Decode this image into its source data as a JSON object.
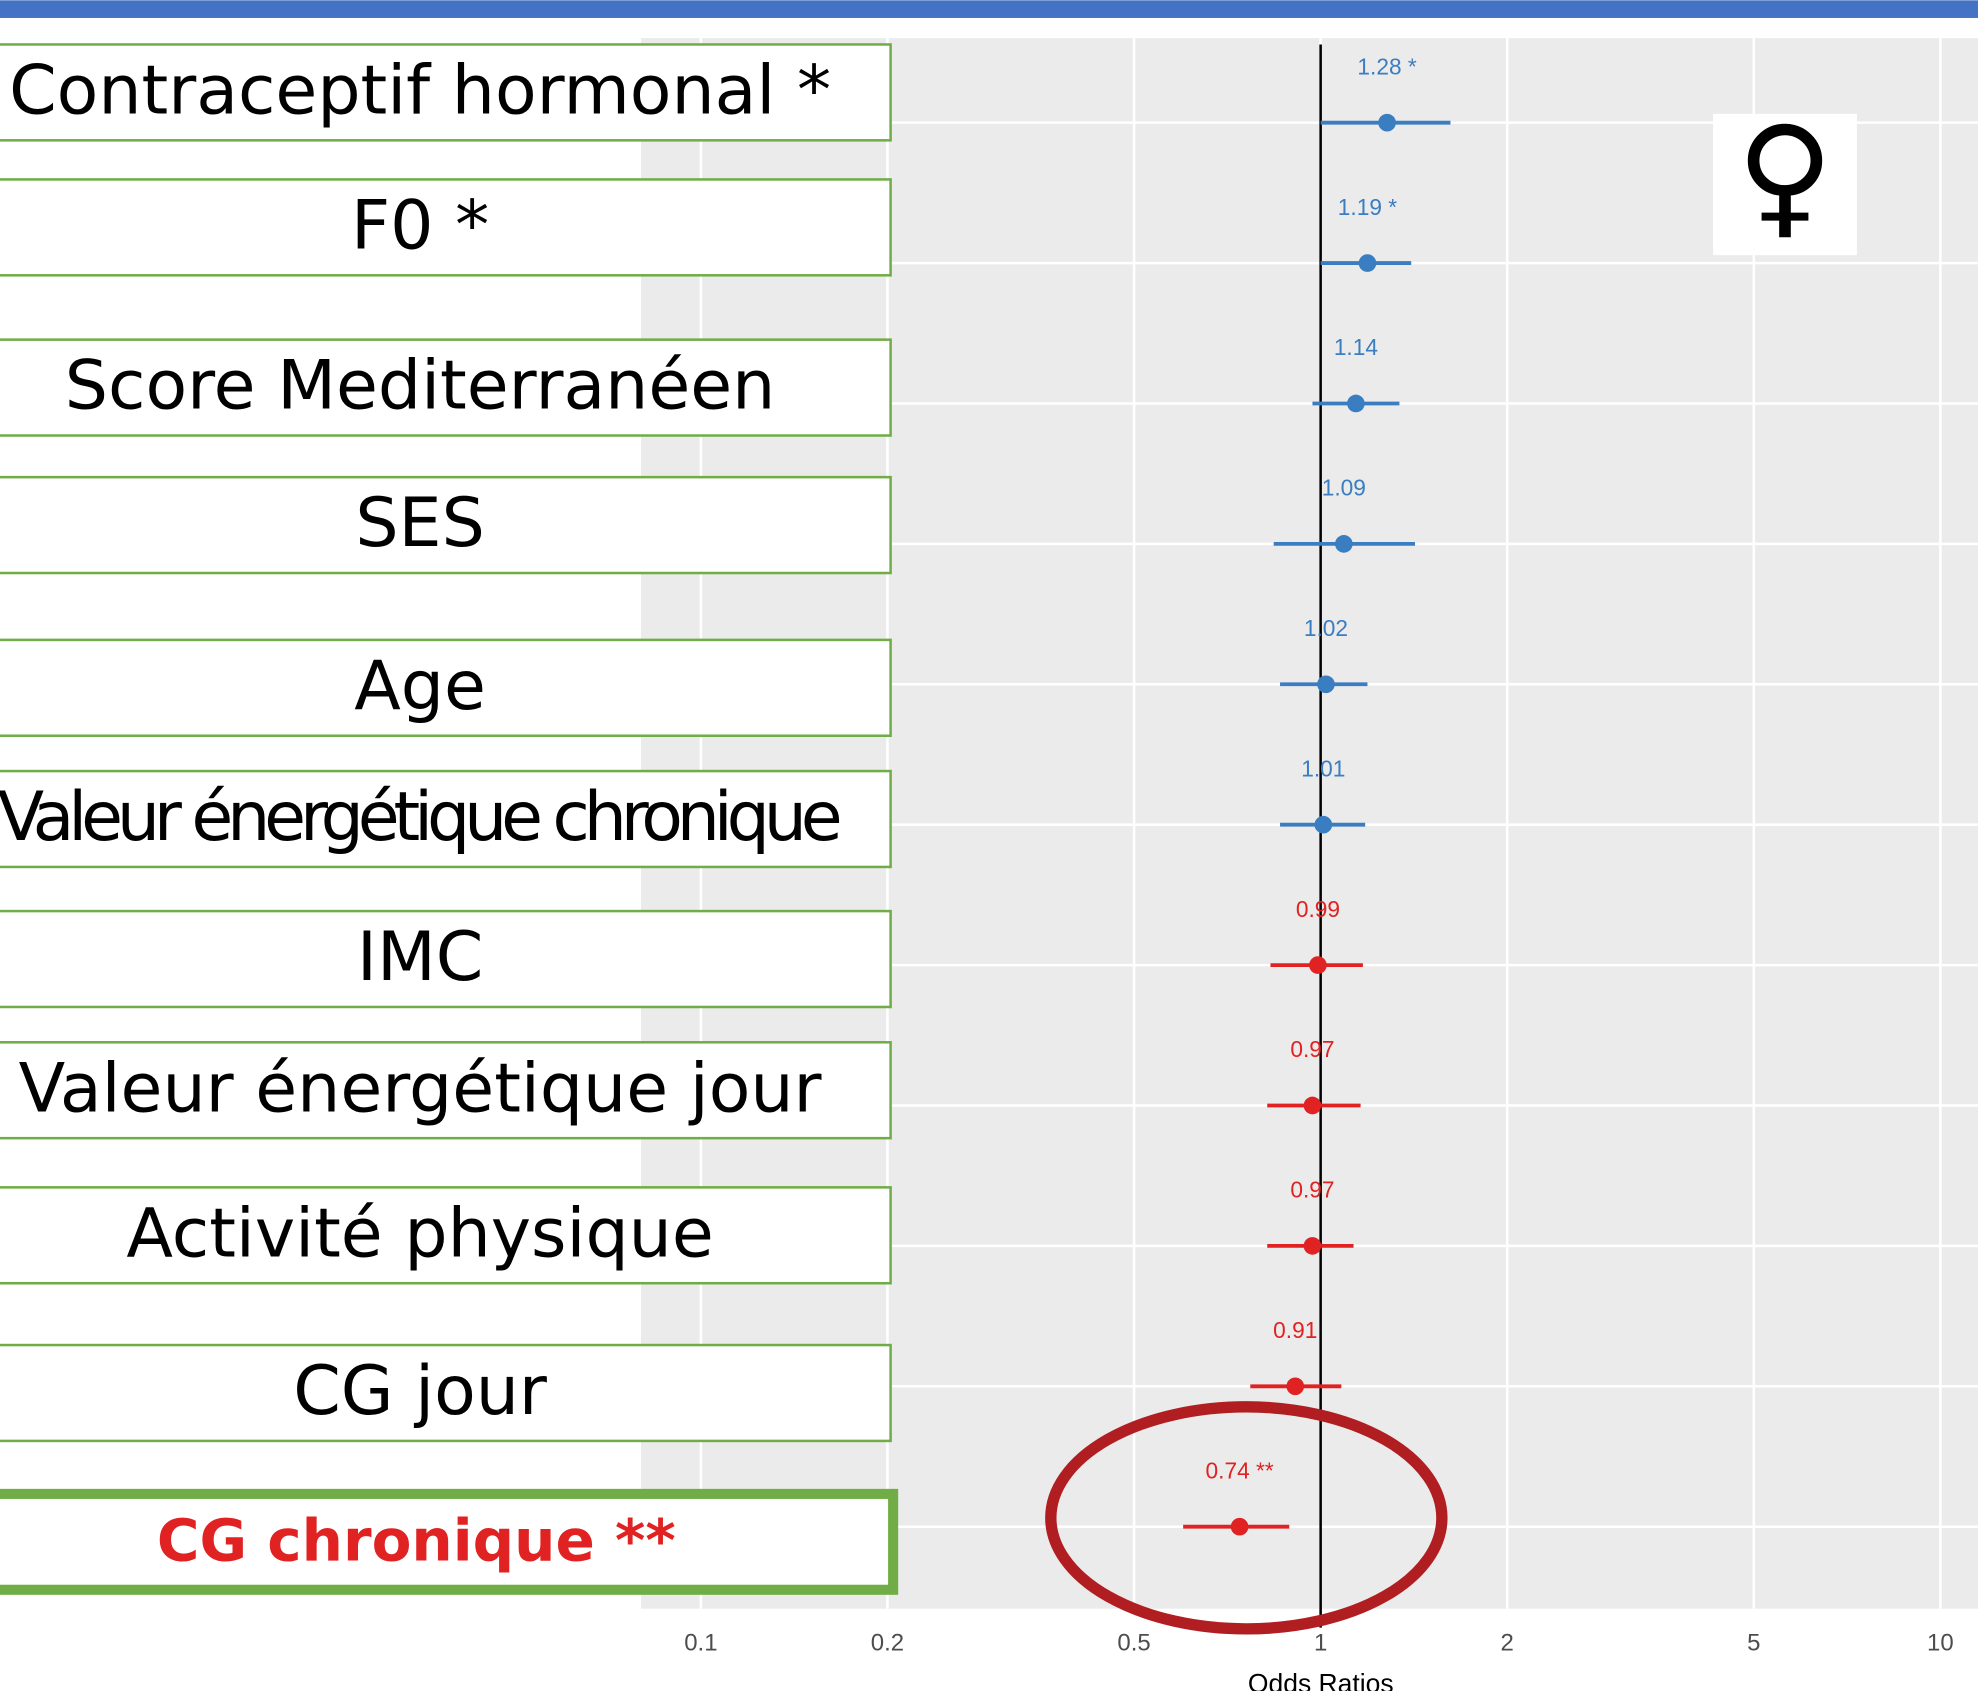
{
  "chart_data": {
    "type": "forest",
    "categories": [
      "Contraceptif hormonal *",
      "F0 *",
      "Score Mediterranéen",
      "SES",
      "Age",
      "Valeur énergétique chronique",
      "IMC",
      "Valeur énergétique jour",
      "Activité physique",
      "CG jour",
      "CG chronique **"
    ],
    "values": [
      1.28,
      1.19,
      1.14,
      1.09,
      1.02,
      1.01,
      0.99,
      0.97,
      0.97,
      0.91,
      0.74
    ],
    "value_labels": [
      "1.28 *",
      "1.19 *",
      "1.14",
      "1.09",
      "1.02",
      "1.01",
      "0.99",
      "0.97",
      "0.97",
      "0.91",
      "0.74 **"
    ],
    "ci_low": [
      1.0,
      1.0,
      0.97,
      0.84,
      0.86,
      0.86,
      0.83,
      0.82,
      0.82,
      0.77,
      0.6
    ],
    "ci_high": [
      1.62,
      1.4,
      1.34,
      1.42,
      1.19,
      1.18,
      1.17,
      1.16,
      1.13,
      1.08,
      0.89
    ],
    "positive_color": "#3a7dc0",
    "negative_color": "#e02222",
    "reference_line": 1,
    "x_label": "Odds Ratios",
    "xscale": "log",
    "xlim": [
      0.08,
      11.5
    ],
    "xticks": [
      0.1,
      0.2,
      0.5,
      1,
      2,
      5,
      10
    ],
    "grid": true,
    "annotation": "♀"
  }
}
